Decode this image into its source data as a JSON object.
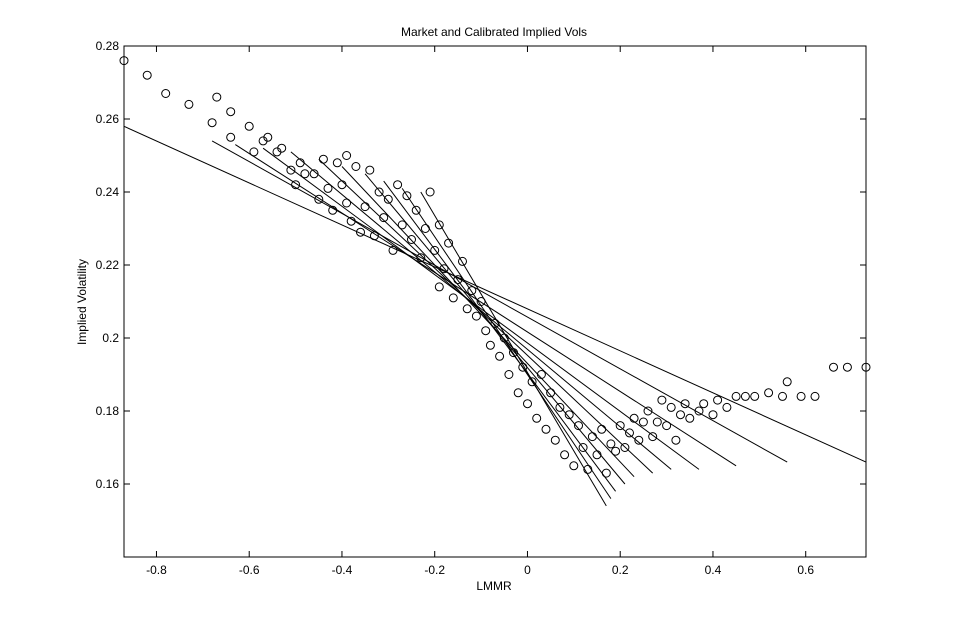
{
  "chart_data": {
    "type": "scatter",
    "title": "Market and Calibrated Implied Vols",
    "xlabel": "LMMR",
    "ylabel": "Implied Volatility",
    "xlim": [
      -0.87,
      0.73
    ],
    "ylim": [
      0.14,
      0.28
    ],
    "x_ticks": [
      -0.8,
      -0.6,
      -0.4,
      -0.2,
      0,
      0.2,
      0.4,
      0.6
    ],
    "x_tick_labels": [
      "-0.8",
      "-0.6",
      "-0.4",
      "-0.2",
      "0",
      "0.2",
      "0.4",
      "0.6"
    ],
    "y_ticks": [
      0.16,
      0.18,
      0.2,
      0.22,
      0.24,
      0.26,
      0.28
    ],
    "y_tick_labels": [
      "0.16",
      "0.18",
      "0.2",
      "0.22",
      "0.24",
      "0.26",
      "0.28"
    ],
    "grid": false,
    "legend": "none",
    "series": [
      {
        "kind": "market-points",
        "marker": "circle-open",
        "points": [
          [
            -0.87,
            0.276
          ],
          [
            -0.82,
            0.272
          ],
          [
            -0.78,
            0.267
          ],
          [
            -0.73,
            0.264
          ],
          [
            -0.68,
            0.259
          ],
          [
            -0.67,
            0.266
          ],
          [
            -0.64,
            0.262
          ],
          [
            -0.64,
            0.255
          ],
          [
            -0.6,
            0.258
          ],
          [
            -0.59,
            0.251
          ],
          [
            -0.57,
            0.254
          ],
          [
            -0.56,
            0.255
          ],
          [
            -0.54,
            0.251
          ],
          [
            -0.53,
            0.252
          ],
          [
            -0.51,
            0.246
          ],
          [
            -0.5,
            0.242
          ],
          [
            -0.49,
            0.248
          ],
          [
            -0.48,
            0.245
          ],
          [
            -0.46,
            0.245
          ],
          [
            -0.45,
            0.238
          ],
          [
            -0.44,
            0.249
          ],
          [
            -0.43,
            0.241
          ],
          [
            -0.42,
            0.235
          ],
          [
            -0.41,
            0.248
          ],
          [
            -0.4,
            0.242
          ],
          [
            -0.39,
            0.237
          ],
          [
            -0.39,
            0.25
          ],
          [
            -0.38,
            0.232
          ],
          [
            -0.37,
            0.247
          ],
          [
            -0.36,
            0.229
          ],
          [
            -0.35,
            0.236
          ],
          [
            -0.34,
            0.246
          ],
          [
            -0.33,
            0.228
          ],
          [
            -0.32,
            0.24
          ],
          [
            -0.31,
            0.233
          ],
          [
            -0.3,
            0.238
          ],
          [
            -0.29,
            0.224
          ],
          [
            -0.28,
            0.242
          ],
          [
            -0.27,
            0.231
          ],
          [
            -0.26,
            0.239
          ],
          [
            -0.25,
            0.227
          ],
          [
            -0.24,
            0.235
          ],
          [
            -0.23,
            0.222
          ],
          [
            -0.22,
            0.23
          ],
          [
            -0.21,
            0.24
          ],
          [
            -0.2,
            0.224
          ],
          [
            -0.19,
            0.231
          ],
          [
            -0.19,
            0.214
          ],
          [
            -0.18,
            0.219
          ],
          [
            -0.17,
            0.226
          ],
          [
            -0.16,
            0.211
          ],
          [
            -0.15,
            0.216
          ],
          [
            -0.14,
            0.221
          ],
          [
            -0.13,
            0.208
          ],
          [
            -0.12,
            0.213
          ],
          [
            -0.11,
            0.206
          ],
          [
            -0.1,
            0.21
          ],
          [
            -0.09,
            0.202
          ],
          [
            -0.08,
            0.198
          ],
          [
            -0.07,
            0.204
          ],
          [
            -0.06,
            0.195
          ],
          [
            -0.05,
            0.2
          ],
          [
            -0.04,
            0.19
          ],
          [
            -0.03,
            0.196
          ],
          [
            -0.02,
            0.185
          ],
          [
            -0.01,
            0.192
          ],
          [
            0.0,
            0.182
          ],
          [
            0.01,
            0.188
          ],
          [
            0.02,
            0.178
          ],
          [
            0.03,
            0.19
          ],
          [
            0.04,
            0.175
          ],
          [
            0.05,
            0.185
          ],
          [
            0.06,
            0.172
          ],
          [
            0.07,
            0.181
          ],
          [
            0.08,
            0.168
          ],
          [
            0.09,
            0.179
          ],
          [
            0.1,
            0.165
          ],
          [
            0.11,
            0.176
          ],
          [
            0.12,
            0.17
          ],
          [
            0.13,
            0.164
          ],
          [
            0.14,
            0.173
          ],
          [
            0.15,
            0.168
          ],
          [
            0.16,
            0.175
          ],
          [
            0.17,
            0.163
          ],
          [
            0.18,
            0.171
          ],
          [
            0.19,
            0.169
          ],
          [
            0.2,
            0.176
          ],
          [
            0.21,
            0.17
          ],
          [
            0.22,
            0.174
          ],
          [
            0.23,
            0.178
          ],
          [
            0.24,
            0.172
          ],
          [
            0.25,
            0.177
          ],
          [
            0.26,
            0.18
          ],
          [
            0.27,
            0.173
          ],
          [
            0.28,
            0.177
          ],
          [
            0.29,
            0.183
          ],
          [
            0.3,
            0.176
          ],
          [
            0.31,
            0.181
          ],
          [
            0.32,
            0.172
          ],
          [
            0.33,
            0.179
          ],
          [
            0.34,
            0.182
          ],
          [
            0.35,
            0.178
          ],
          [
            0.37,
            0.18
          ],
          [
            0.38,
            0.182
          ],
          [
            0.4,
            0.179
          ],
          [
            0.41,
            0.183
          ],
          [
            0.43,
            0.181
          ],
          [
            0.45,
            0.184
          ],
          [
            0.47,
            0.184
          ],
          [
            0.49,
            0.184
          ],
          [
            0.52,
            0.185
          ],
          [
            0.55,
            0.184
          ],
          [
            0.56,
            0.188
          ],
          [
            0.59,
            0.184
          ],
          [
            0.62,
            0.184
          ],
          [
            0.66,
            0.192
          ],
          [
            0.69,
            0.192
          ],
          [
            0.73,
            0.192
          ]
        ]
      },
      {
        "kind": "calibrated-lines",
        "style": "line",
        "lines": [
          [
            [
              -0.87,
              0.258
            ],
            [
              0.73,
              0.166
            ]
          ],
          [
            [
              -0.68,
              0.254
            ],
            [
              0.56,
              0.166
            ]
          ],
          [
            [
              -0.63,
              0.253
            ],
            [
              0.45,
              0.165
            ]
          ],
          [
            [
              -0.57,
              0.252
            ],
            [
              0.37,
              0.164
            ]
          ],
          [
            [
              -0.51,
              0.251
            ],
            [
              0.31,
              0.164
            ]
          ],
          [
            [
              -0.45,
              0.249
            ],
            [
              0.27,
              0.163
            ]
          ],
          [
            [
              -0.4,
              0.247
            ],
            [
              0.23,
              0.162
            ]
          ],
          [
            [
              -0.35,
              0.245
            ],
            [
              0.21,
              0.16
            ]
          ],
          [
            [
              -0.31,
              0.243
            ],
            [
              0.19,
              0.158
            ]
          ],
          [
            [
              -0.27,
              0.241
            ],
            [
              0.18,
              0.156
            ]
          ],
          [
            [
              -0.23,
              0.24
            ],
            [
              0.17,
              0.154
            ]
          ]
        ]
      }
    ]
  }
}
